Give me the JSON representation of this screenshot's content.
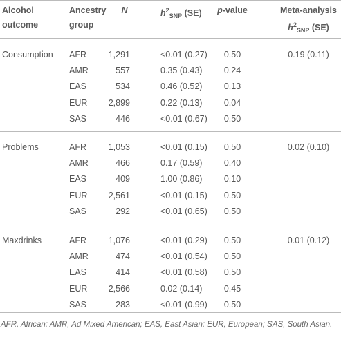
{
  "table": {
    "header": [
      {
        "lines": [
          [
            {
              "text": "Alcohol"
            }
          ],
          [
            {
              "text": "outcome"
            }
          ]
        ]
      },
      {
        "lines": [
          [
            {
              "text": "Ancestry"
            }
          ],
          [
            {
              "text": "group"
            }
          ]
        ]
      },
      {
        "lines": [
          [
            {
              "text": "N",
              "style": "italic"
            }
          ]
        ]
      },
      {
        "lines": [
          [
            {
              "text": "h",
              "style": "italic"
            },
            {
              "text": "2",
              "style": "sup"
            },
            {
              "text": "SNP",
              "style": "sub"
            },
            {
              "text": " (SE)"
            }
          ]
        ]
      },
      {
        "lines": [
          [
            {
              "text": "p",
              "style": "italic"
            },
            {
              "text": "-value"
            }
          ]
        ]
      },
      {
        "lines": [
          [
            {
              "text": "Meta-analysis"
            }
          ],
          [
            {
              "text": "h",
              "style": "italic"
            },
            {
              "text": "2",
              "style": "sup"
            },
            {
              "text": "SNP",
              "style": "sub"
            },
            {
              "text": " (SE)"
            }
          ]
        ]
      }
    ],
    "groups": [
      {
        "outcome": "Consumption",
        "meta": "0.19 (0.11)",
        "rows": [
          [
            "AFR",
            "1,291",
            "<0.01 (0.27)",
            "0.50"
          ],
          [
            "AMR",
            "557",
            "0.35 (0.43)",
            "0.24"
          ],
          [
            "EAS",
            "534",
            "0.46 (0.52)",
            "0.13"
          ],
          [
            "EUR",
            "2,899",
            "0.22 (0.13)",
            "0.04"
          ],
          [
            "SAS",
            "446",
            "<0.01 (0.67)",
            "0.50"
          ]
        ]
      },
      {
        "outcome": "Problems",
        "meta": "0.02 (0.10)",
        "rows": [
          [
            "AFR",
            "1,053",
            "<0.01 (0.15)",
            "0.50"
          ],
          [
            "AMR",
            "466",
            "0.17 (0.59)",
            "0.40"
          ],
          [
            "EAS",
            "409",
            "1.00 (0.86)",
            "0.10"
          ],
          [
            "EUR",
            "2,561",
            "<0.01 (0.15)",
            "0.50"
          ],
          [
            "SAS",
            "292",
            "<0.01 (0.65)",
            "0.50"
          ]
        ]
      },
      {
        "outcome": "Maxdrinks",
        "meta": "0.01 (0.12)",
        "rows": [
          [
            "AFR",
            "1,076",
            "<0.01 (0.29)",
            "0.50"
          ],
          [
            "AMR",
            "474",
            "<0.01 (0.54)",
            "0.50"
          ],
          [
            "EAS",
            "414",
            "<0.01 (0.58)",
            "0.50"
          ],
          [
            "EUR",
            "2,566",
            "0.02 (0.14)",
            "0.45"
          ],
          [
            "SAS",
            "283",
            "<0.01 (0.99)",
            "0.50"
          ]
        ]
      }
    ],
    "footnote": "AFR, African; AMR, Ad Mixed American; EAS, East Asian; EUR, European; SAS, South Asian."
  }
}
